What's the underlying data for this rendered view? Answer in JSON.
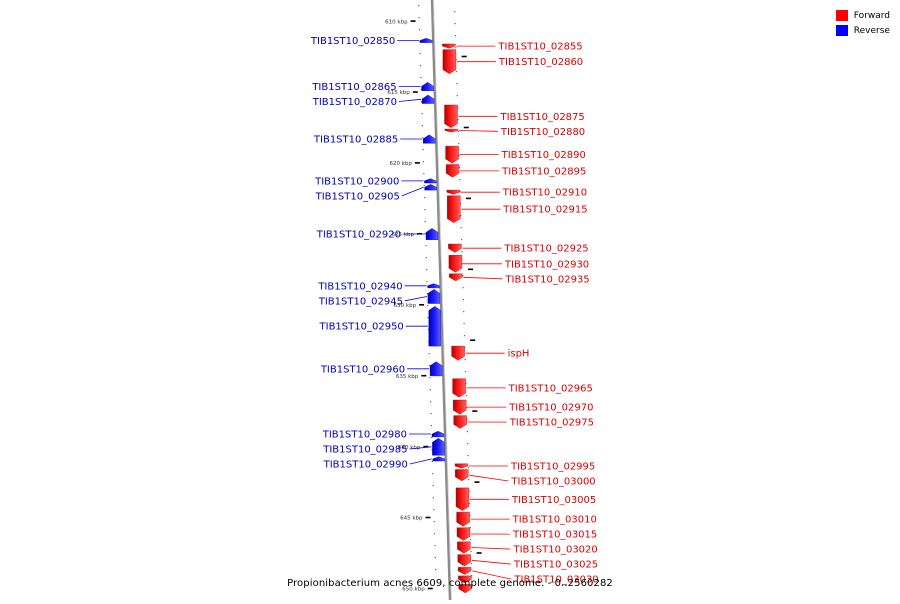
{
  "caption": "Propionibacterium acnes 6609, complete genome. - 0..2560282",
  "legend": [
    {
      "label": "Forward",
      "color": "#ff0000"
    },
    {
      "label": "Reverse",
      "color": "#0000ff"
    }
  ],
  "colors": {
    "forward": "#ff0000",
    "reverse": "#0000ff",
    "backbone": "#999999"
  },
  "ruler": [
    {
      "label": "610 kbp",
      "kbp": 610
    },
    {
      "label": "615 kbp",
      "kbp": 615
    },
    {
      "label": "620 kbp",
      "kbp": 620
    },
    {
      "label": "625 kbp",
      "kbp": 625
    },
    {
      "label": "630 kbp",
      "kbp": 630
    },
    {
      "label": "635 kbp",
      "kbp": 635
    },
    {
      "label": "640 kbp",
      "kbp": 640
    },
    {
      "label": "645 kbp",
      "kbp": 645
    },
    {
      "label": "650 kbp",
      "kbp": 650
    }
  ],
  "genes": [
    {
      "name": "TIB1ST10_02850",
      "strand": "reverse",
      "start": 611.2,
      "end": 611.5
    },
    {
      "name": "TIB1ST10_02855",
      "strand": "forward",
      "start": 611.6,
      "end": 611.9
    },
    {
      "name": "TIB1ST10_02860",
      "strand": "forward",
      "start": 612.0,
      "end": 613.7
    },
    {
      "name": "TIB1ST10_02865",
      "strand": "reverse",
      "start": 614.3,
      "end": 614.9
    },
    {
      "name": "TIB1ST10_02870",
      "strand": "reverse",
      "start": 615.2,
      "end": 615.8
    },
    {
      "name": "TIB1ST10_02875",
      "strand": "forward",
      "start": 615.9,
      "end": 617.5
    },
    {
      "name": "TIB1ST10_02880",
      "strand": "forward",
      "start": 617.6,
      "end": 617.8
    },
    {
      "name": "TIB1ST10_02885",
      "strand": "reverse",
      "start": 618.0,
      "end": 618.6
    },
    {
      "name": "TIB1ST10_02890",
      "strand": "forward",
      "start": 618.8,
      "end": 620.0
    },
    {
      "name": "TIB1ST10_02895",
      "strand": "forward",
      "start": 620.1,
      "end": 621.0
    },
    {
      "name": "TIB1ST10_02900",
      "strand": "reverse",
      "start": 621.1,
      "end": 621.4
    },
    {
      "name": "TIB1ST10_02905",
      "strand": "reverse",
      "start": 621.5,
      "end": 621.9
    },
    {
      "name": "TIB1ST10_02910",
      "strand": "forward",
      "start": 621.9,
      "end": 622.2
    },
    {
      "name": "TIB1ST10_02915",
      "strand": "forward",
      "start": 622.3,
      "end": 624.2
    },
    {
      "name": "TIB1ST10_02920",
      "strand": "reverse",
      "start": 624.6,
      "end": 625.4
    },
    {
      "name": "TIB1ST10_02925",
      "strand": "forward",
      "start": 625.7,
      "end": 626.3
    },
    {
      "name": "TIB1ST10_02930",
      "strand": "forward",
      "start": 626.5,
      "end": 627.7
    },
    {
      "name": "TIB1ST10_02935",
      "strand": "forward",
      "start": 627.8,
      "end": 628.3
    },
    {
      "name": "TIB1ST10_02940",
      "strand": "reverse",
      "start": 628.5,
      "end": 628.8
    },
    {
      "name": "TIB1ST10_02945",
      "strand": "reverse",
      "start": 628.9,
      "end": 629.9
    },
    {
      "name": "TIB1ST10_02950",
      "strand": "reverse",
      "start": 630.1,
      "end": 632.9
    },
    {
      "name": "ispH",
      "strand": "forward",
      "start": 632.9,
      "end": 633.9
    },
    {
      "name": "TIB1ST10_02960",
      "strand": "reverse",
      "start": 634.0,
      "end": 635.0
    },
    {
      "name": "TIB1ST10_02965",
      "strand": "forward",
      "start": 635.2,
      "end": 636.5
    },
    {
      "name": "TIB1ST10_02970",
      "strand": "forward",
      "start": 636.7,
      "end": 637.7
    },
    {
      "name": "TIB1ST10_02975",
      "strand": "forward",
      "start": 637.8,
      "end": 638.7
    },
    {
      "name": "TIB1ST10_02980",
      "strand": "reverse",
      "start": 638.9,
      "end": 639.3
    },
    {
      "name": "TIB1ST10_02985",
      "strand": "reverse",
      "start": 639.4,
      "end": 640.6
    },
    {
      "name": "TIB1ST10_02990",
      "strand": "reverse",
      "start": 640.7,
      "end": 641.0
    },
    {
      "name": "TIB1ST10_02995",
      "strand": "forward",
      "start": 641.2,
      "end": 641.5
    },
    {
      "name": "TIB1ST10_03000",
      "strand": "forward",
      "start": 641.6,
      "end": 642.4
    },
    {
      "name": "TIB1ST10_03005",
      "strand": "forward",
      "start": 642.9,
      "end": 644.5
    },
    {
      "name": "TIB1ST10_03010",
      "strand": "forward",
      "start": 644.6,
      "end": 645.6
    },
    {
      "name": "TIB1ST10_03015",
      "strand": "forward",
      "start": 645.7,
      "end": 646.6
    },
    {
      "name": "TIB1ST10_03020",
      "strand": "forward",
      "start": 646.7,
      "end": 647.5
    },
    {
      "name": "TIB1ST10_03025",
      "strand": "forward",
      "start": 647.6,
      "end": 648.4
    },
    {
      "name": "TIB1ST10_03030",
      "strand": "forward",
      "start": 648.5,
      "end": 649.0
    },
    {
      "name": "",
      "strand": "forward",
      "start": 649.1,
      "end": 649.6
    },
    {
      "name": "",
      "strand": "forward",
      "start": 649.7,
      "end": 650.3
    }
  ]
}
